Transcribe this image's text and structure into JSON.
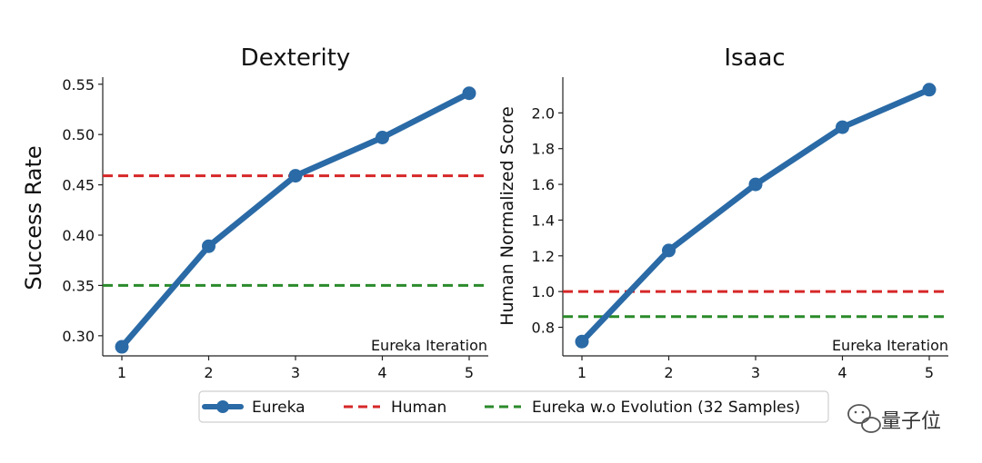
{
  "legend": {
    "items": [
      {
        "label": "Eureka",
        "color": "#2a6aa6",
        "style": "line-marker"
      },
      {
        "label": "Human",
        "color": "#d62728",
        "style": "dashed"
      },
      {
        "label": "Eureka w.o Evolution (32 Samples)",
        "color": "#2a8a2a",
        "style": "dashed"
      }
    ]
  },
  "watermark": {
    "text": "量子位",
    "icon": "wechat-icon"
  },
  "chart_data": [
    {
      "type": "line",
      "title": "Dexterity",
      "xlabel": "Eureka Iteration",
      "ylabel": "Success Rate",
      "x": [
        1,
        2,
        3,
        4,
        5
      ],
      "xticks": [
        "1",
        "2",
        "3",
        "4",
        "5"
      ],
      "yticks": [
        0.3,
        0.35,
        0.4,
        0.45,
        0.5,
        0.55
      ],
      "ytick_labels": [
        "0.30",
        "0.35",
        "0.40",
        "0.45",
        "0.50",
        "0.55"
      ],
      "ylim": [
        0.28,
        0.557
      ],
      "xlim": [
        0.78,
        5.22
      ],
      "series": [
        {
          "name": "Eureka",
          "values": [
            0.289,
            0.389,
            0.459,
            0.497,
            0.541
          ],
          "color": "#2a6aa6"
        }
      ],
      "hlines": [
        {
          "name": "Human",
          "value": 0.459,
          "color": "#d62728"
        },
        {
          "name": "Eureka w.o Evolution (32 Samples)",
          "value": 0.35,
          "color": "#2a8a2a"
        }
      ]
    },
    {
      "type": "line",
      "title": "Isaac",
      "xlabel": "Eureka Iteration",
      "ylabel": "Human Normalized Score",
      "x": [
        1,
        2,
        3,
        4,
        5
      ],
      "xticks": [
        "1",
        "2",
        "3",
        "4",
        "5"
      ],
      "yticks": [
        0.8,
        1.0,
        1.2,
        1.4,
        1.6,
        1.8,
        2.0
      ],
      "ytick_labels": [
        "0.8",
        "1.0",
        "1.2",
        "1.4",
        "1.6",
        "1.8",
        "2.0"
      ],
      "ylim": [
        0.64,
        2.2
      ],
      "xlim": [
        0.78,
        5.22
      ],
      "series": [
        {
          "name": "Eureka",
          "values": [
            0.72,
            1.23,
            1.6,
            1.92,
            2.13
          ],
          "color": "#2a6aa6"
        }
      ],
      "hlines": [
        {
          "name": "Human",
          "value": 1.0,
          "color": "#d62728"
        },
        {
          "name": "Eureka w.o Evolution (32 Samples)",
          "value": 0.86,
          "color": "#2a8a2a"
        }
      ]
    }
  ]
}
